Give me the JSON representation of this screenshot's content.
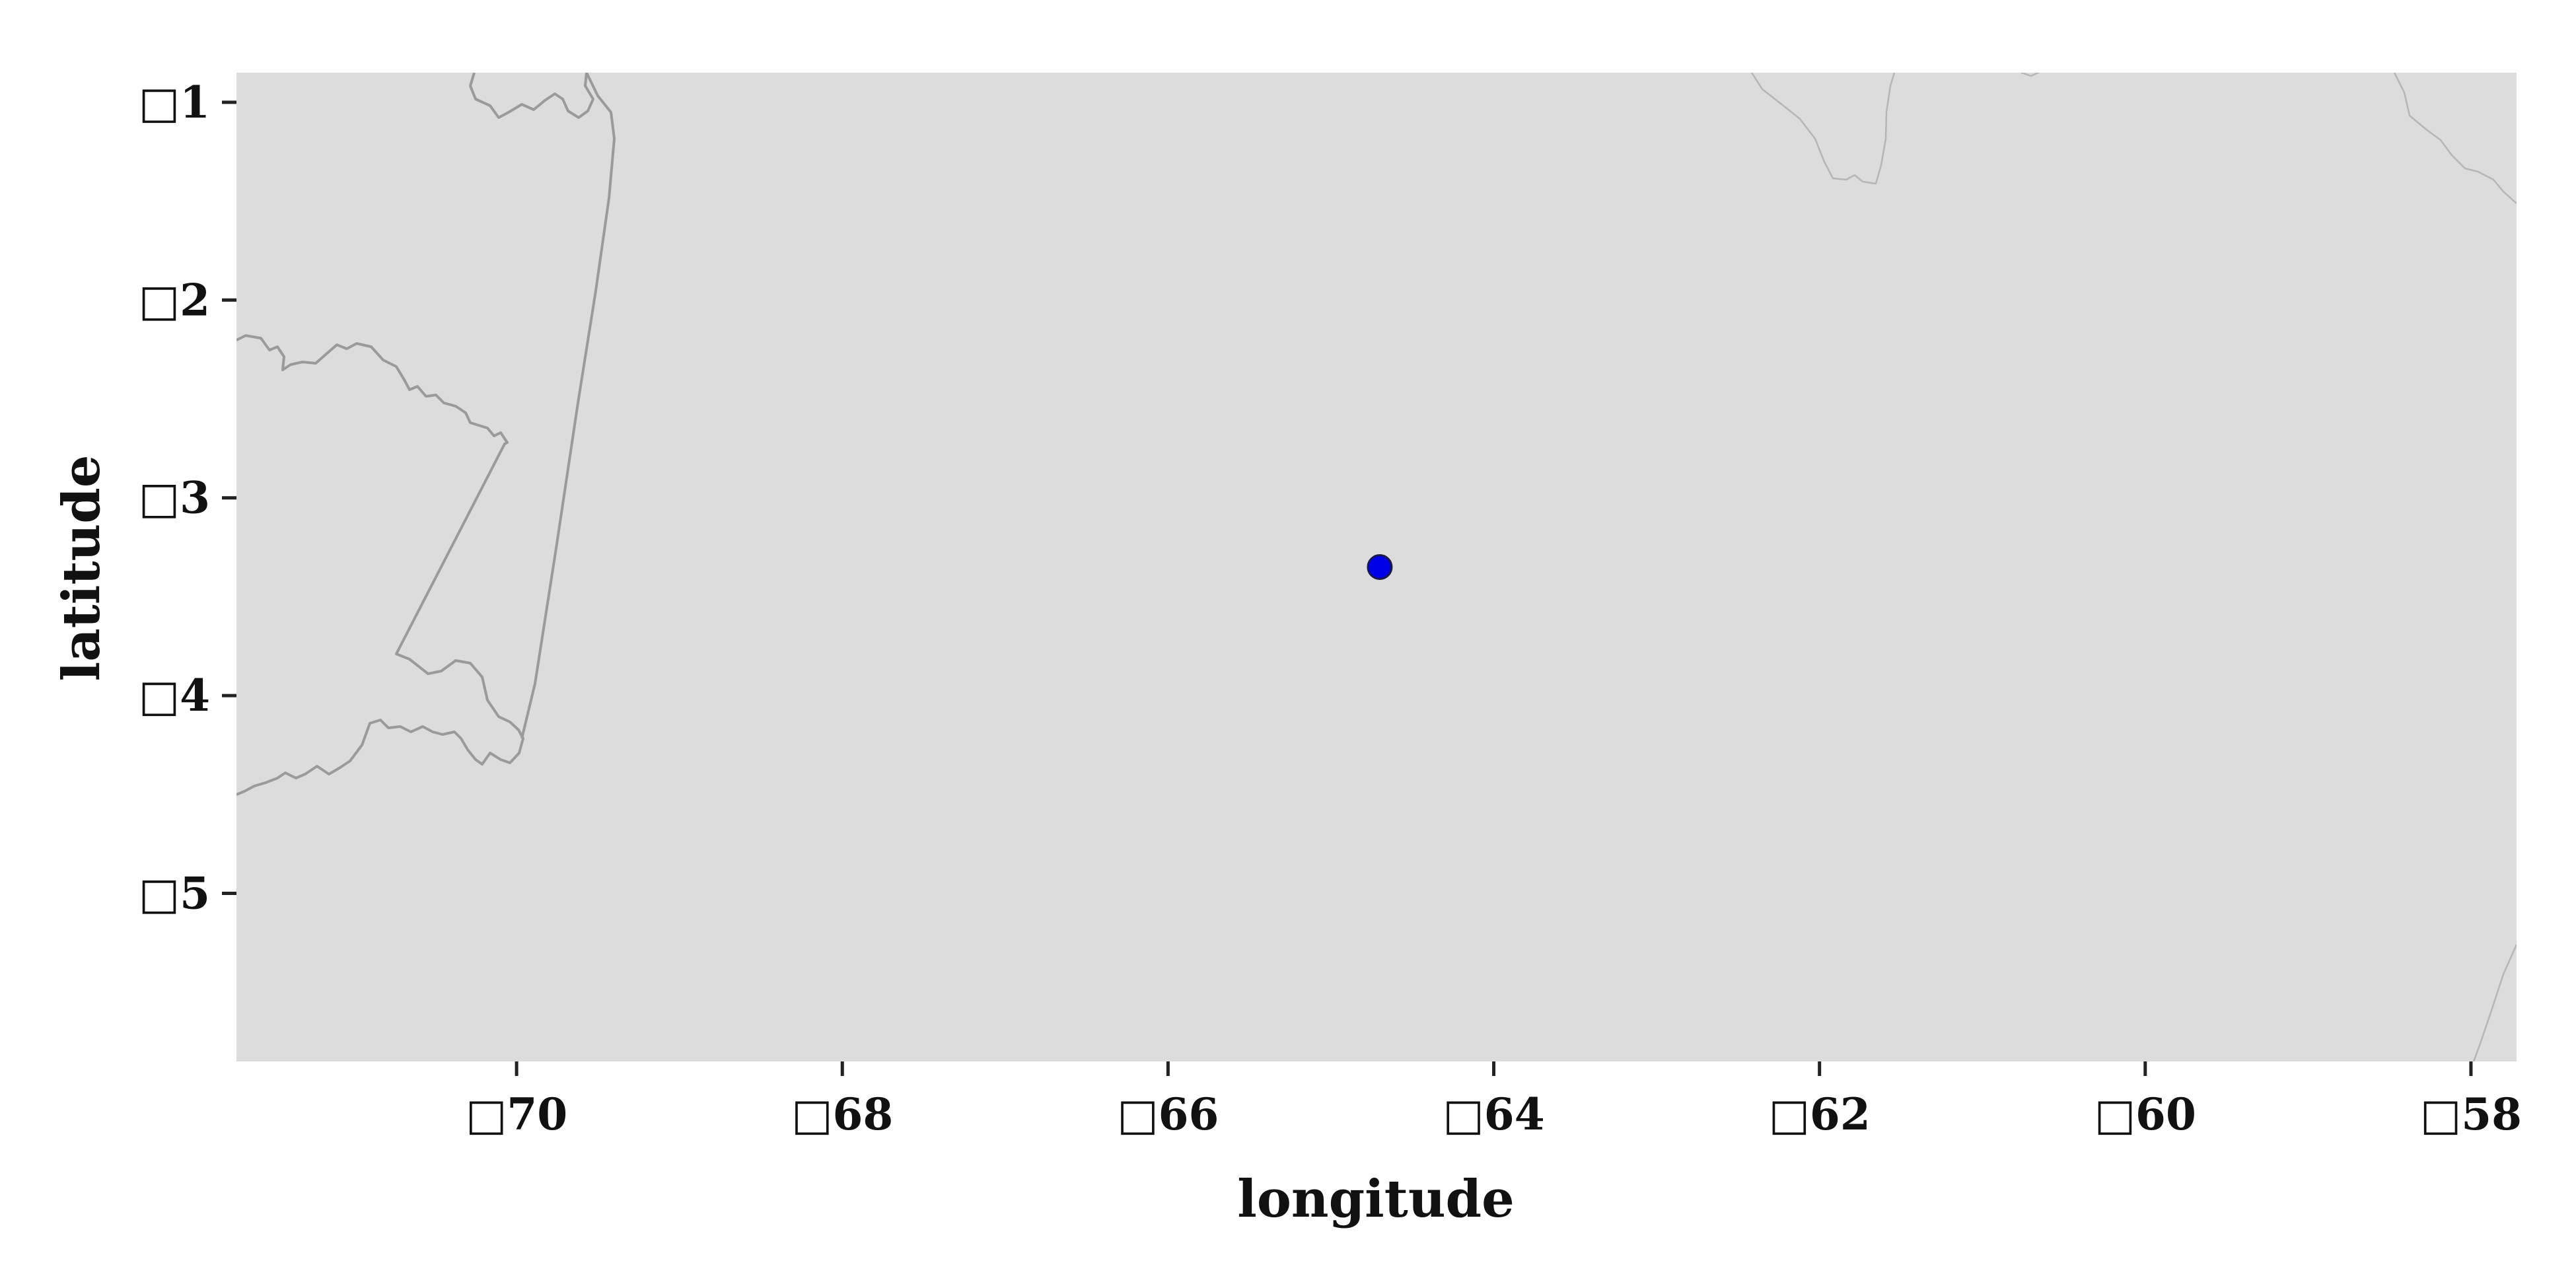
{
  "chart_data": {
    "type": "scatter",
    "title": "",
    "xlabel": "longitude",
    "ylabel": "latitude",
    "xlim": [
      -71.72,
      -57.72
    ],
    "ylim": [
      -5.85,
      -0.85
    ],
    "x_ticks": [
      {
        "value": -70,
        "label": "□70"
      },
      {
        "value": -68,
        "label": "□68"
      },
      {
        "value": -66,
        "label": "□66"
      },
      {
        "value": -64,
        "label": "□64"
      },
      {
        "value": -62,
        "label": "□62"
      },
      {
        "value": -60,
        "label": "□60"
      },
      {
        "value": -58,
        "label": "□58"
      }
    ],
    "y_ticks": [
      {
        "value": -1,
        "label": "□1"
      },
      {
        "value": -2,
        "label": "□2"
      },
      {
        "value": -3,
        "label": "□3"
      },
      {
        "value": -4,
        "label": "□4"
      },
      {
        "value": -5,
        "label": "□5"
      }
    ],
    "points": [
      {
        "lon": -64.7,
        "lat": -3.35
      }
    ],
    "grid": false,
    "legend": "none"
  },
  "colors": {
    "map_background": "#dcdcdc",
    "point_fill": "#0000e6",
    "point_edge": "#1a1a4a",
    "border_lines": "#9a9a9a",
    "river_lines": "#b5b5b5"
  }
}
